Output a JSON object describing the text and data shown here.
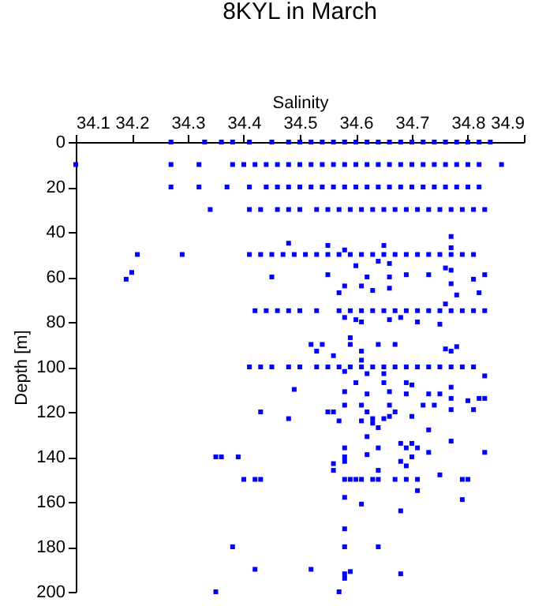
{
  "chart_data": {
    "type": "scatter",
    "title": "8KYL in March",
    "xlabel": "Salinity",
    "ylabel": "Depth [m]",
    "xlim": [
      34.1,
      34.9
    ],
    "xticks": [
      34.1,
      34.2,
      34.3,
      34.4,
      34.5,
      34.6,
      34.7,
      34.8,
      34.9
    ],
    "ylim": [
      200,
      0
    ],
    "yticks": [
      0,
      20,
      40,
      60,
      80,
      100,
      120,
      140,
      160,
      180,
      200
    ],
    "grid": false,
    "legend": false,
    "marker": "square",
    "series": [
      {
        "color": "#0000ff",
        "x": [
          34.27,
          34.33,
          34.36,
          34.38,
          34.41,
          34.45,
          34.48,
          34.5,
          34.52,
          34.54,
          34.56,
          34.58,
          34.6,
          34.62,
          34.64,
          34.66,
          34.68,
          34.7,
          34.72,
          34.74,
          34.76,
          34.78,
          34.8,
          34.82,
          34.84
        ],
        "values": [
          0,
          0,
          0,
          0,
          0,
          0,
          0,
          0,
          0,
          0,
          0,
          0,
          0,
          0,
          0,
          0,
          0,
          0,
          0,
          0,
          0,
          0,
          0,
          0,
          0
        ]
      },
      {
        "color": "#0000ff",
        "x": [
          34.1,
          34.27,
          34.32,
          34.38,
          34.4,
          34.42,
          34.44,
          34.46,
          34.48,
          34.5,
          34.52,
          34.54,
          34.56,
          34.58,
          34.6,
          34.62,
          34.64,
          34.66,
          34.68,
          34.7,
          34.72,
          34.74,
          34.76,
          34.78,
          34.8,
          34.82,
          34.86
        ],
        "values": [
          10,
          10,
          10,
          10,
          10,
          10,
          10,
          10,
          10,
          10,
          10,
          10,
          10,
          10,
          10,
          10,
          10,
          10,
          10,
          10,
          10,
          10,
          10,
          10,
          10,
          10,
          10
        ]
      },
      {
        "color": "#0000ff",
        "x": [
          34.27,
          34.32,
          34.37,
          34.41,
          34.44,
          34.46,
          34.48,
          34.5,
          34.52,
          34.54,
          34.56,
          34.58,
          34.6,
          34.62,
          34.64,
          34.66,
          34.68,
          34.7,
          34.72,
          34.74,
          34.76,
          34.78,
          34.8,
          34.82
        ],
        "values": [
          20,
          20,
          20,
          20,
          20,
          20,
          20,
          20,
          20,
          20,
          20,
          20,
          20,
          20,
          20,
          20,
          20,
          20,
          20,
          20,
          20,
          20,
          20,
          20
        ]
      },
      {
        "color": "#0000ff",
        "x": [
          34.34,
          34.41,
          34.43,
          34.46,
          34.48,
          34.5,
          34.53,
          34.55,
          34.57,
          34.59,
          34.61,
          34.63,
          34.65,
          34.67,
          34.69,
          34.71,
          34.73,
          34.75,
          34.77,
          34.79,
          34.81,
          34.83
        ],
        "values": [
          30,
          30,
          30,
          30,
          30,
          30,
          30,
          30,
          30,
          30,
          30,
          30,
          30,
          30,
          30,
          30,
          30,
          30,
          30,
          30,
          30,
          30
        ]
      },
      {
        "color": "#0000ff",
        "x": [
          34.21,
          34.29,
          34.41,
          34.43,
          34.45,
          34.47,
          34.49,
          34.51,
          34.53,
          34.55,
          34.57,
          34.59,
          34.61,
          34.63,
          34.65,
          34.67,
          34.69,
          34.71,
          34.73,
          34.75,
          34.77,
          34.79,
          34.81
        ],
        "values": [
          50,
          50,
          50,
          50,
          50,
          50,
          50,
          50,
          50,
          50,
          50,
          50,
          50,
          50,
          50,
          50,
          50,
          50,
          50,
          50,
          50,
          50,
          50
        ]
      },
      {
        "color": "#0000ff",
        "x": [
          34.42,
          34.44,
          34.46,
          34.48,
          34.5,
          34.53,
          34.57,
          34.59,
          34.61,
          34.63,
          34.65,
          34.67,
          34.69,
          34.71,
          34.73,
          34.75,
          34.77,
          34.79,
          34.81,
          34.83
        ],
        "values": [
          75,
          75,
          75,
          75,
          75,
          75,
          75,
          75,
          75,
          75,
          75,
          75,
          75,
          75,
          75,
          75,
          75,
          75,
          75,
          75
        ]
      },
      {
        "color": "#0000ff",
        "x": [
          34.41,
          34.43,
          34.45,
          34.48,
          34.5,
          34.53,
          34.55,
          34.57,
          34.59,
          34.61,
          34.63,
          34.65,
          34.67,
          34.69,
          34.71,
          34.73,
          34.75,
          34.77,
          34.79,
          34.81
        ],
        "values": [
          100,
          100,
          100,
          100,
          100,
          100,
          100,
          100,
          100,
          100,
          100,
          100,
          100,
          100,
          100,
          100,
          100,
          100,
          100,
          100
        ]
      },
      {
        "color": "#0000ff",
        "x": [
          34.4,
          34.42,
          34.43,
          34.58,
          34.59,
          34.6,
          34.61,
          34.63,
          34.64,
          34.67,
          34.69,
          34.71,
          34.79,
          34.8,
          34.75
        ],
        "values": [
          150,
          150,
          150,
          150,
          150,
          150,
          150,
          150,
          150,
          150,
          150,
          150,
          150,
          150,
          148
        ]
      },
      {
        "color": "#0000ff",
        "x": [
          34.48,
          34.55,
          34.58,
          34.65,
          34.77,
          34.77,
          34.6,
          34.64,
          34.66,
          34.76
        ],
        "values": [
          45,
          46,
          48,
          46,
          42,
          47,
          55,
          53,
          54,
          56
        ]
      },
      {
        "color": "#0000ff",
        "x": [
          34.19,
          34.2,
          34.45,
          34.55,
          34.58,
          34.57,
          34.61,
          34.62,
          34.63,
          34.66,
          34.66,
          34.69,
          34.73,
          34.77,
          34.77,
          34.78,
          34.81,
          34.82,
          34.83,
          34.76
        ],
        "values": [
          61,
          58,
          60,
          59,
          64,
          67,
          64,
          60,
          66,
          60,
          65,
          59,
          59,
          57,
          63,
          68,
          61,
          67,
          59,
          72
        ]
      },
      {
        "color": "#0000ff",
        "x": [
          34.58,
          34.6,
          34.61,
          34.66,
          34.68,
          34.71,
          34.75,
          34.59,
          34.59,
          34.52,
          34.54,
          34.53,
          34.56,
          34.61,
          34.64,
          34.67,
          34.76,
          34.77,
          34.78,
          34.61
        ],
        "values": [
          78,
          79,
          80,
          79,
          78,
          80,
          81,
          87,
          90,
          90,
          90,
          93,
          95,
          93,
          90,
          90,
          92,
          93,
          91,
          97
        ]
      },
      {
        "color": "#0000ff",
        "x": [
          34.58,
          34.62,
          34.65,
          34.83,
          34.6,
          34.65,
          34.69,
          34.7,
          34.49,
          34.58,
          34.62,
          34.66,
          34.69,
          34.73,
          34.75,
          34.77,
          34.77,
          34.82,
          34.83,
          34.8
        ],
        "values": [
          102,
          103,
          103,
          104,
          107,
          107,
          107,
          108,
          110,
          111,
          112,
          111,
          112,
          112,
          112,
          109,
          114,
          114,
          114,
          115
        ]
      },
      {
        "color": "#0000ff",
        "x": [
          34.58,
          34.61,
          34.66,
          34.72,
          34.74,
          34.43,
          34.55,
          34.56,
          34.62,
          34.67,
          34.77,
          34.81
        ],
        "values": [
          117,
          117,
          117,
          117,
          117,
          120,
          120,
          120,
          120,
          120,
          119,
          119
        ]
      },
      {
        "color": "#0000ff",
        "x": [
          34.48,
          34.57,
          34.61,
          34.63,
          34.63,
          34.65,
          34.66,
          34.64,
          34.7,
          34.73,
          34.62,
          34.58,
          34.58,
          34.58,
          34.62,
          34.64,
          34.68,
          34.69,
          34.7,
          34.71,
          34.73,
          34.77,
          34.83
        ],
        "values": [
          123,
          124,
          124,
          125,
          123,
          123,
          122,
          127,
          122,
          128,
          131,
          136,
          140,
          142,
          139,
          136,
          134,
          136,
          134,
          136,
          138,
          133,
          138
        ]
      },
      {
        "color": "#0000ff",
        "x": [
          34.7,
          34.68,
          34.69,
          34.64,
          34.56,
          34.56,
          34.35,
          34.36,
          34.39
        ],
        "values": [
          140,
          142,
          144,
          146,
          143,
          146,
          140,
          140,
          140
        ]
      },
      {
        "color": "#0000ff",
        "x": [
          34.71,
          34.58,
          34.79,
          34.61,
          34.68,
          34.58,
          34.38,
          34.58,
          34.64,
          34.42,
          34.52,
          34.59,
          34.58,
          34.58,
          34.68,
          34.35,
          34.57
        ],
        "values": [
          155,
          158,
          159,
          161,
          164,
          172,
          180,
          180,
          180,
          190,
          190,
          191,
          192,
          194,
          192,
          200,
          200
        ]
      }
    ]
  }
}
